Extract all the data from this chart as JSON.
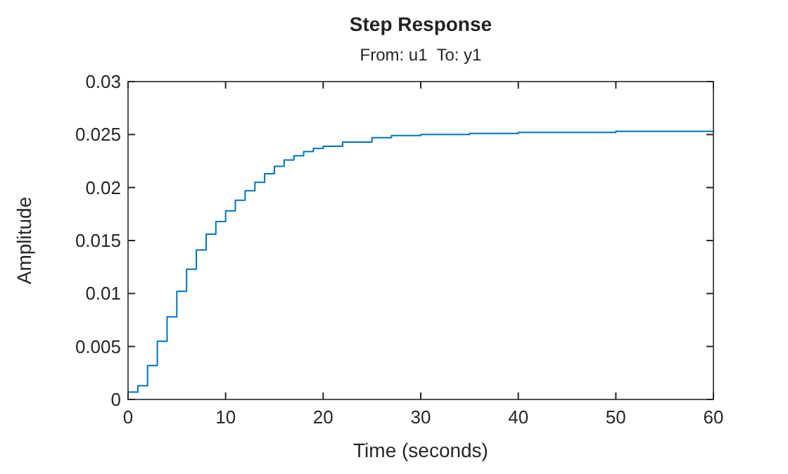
{
  "chart_data": {
    "type": "step",
    "title": "Step Response",
    "subtitle": "From: u1  To: y1",
    "xlabel": "Time (seconds)",
    "ylabel": "Amplitude",
    "x": [
      0,
      1,
      2,
      3,
      4,
      5,
      6,
      7,
      8,
      9,
      10,
      11,
      12,
      13,
      14,
      15,
      16,
      17,
      18,
      19,
      20,
      22,
      25,
      27,
      30,
      35,
      40,
      45,
      50,
      60
    ],
    "series": [
      {
        "color": "#0072bd",
        "values": [
          0.0007,
          0.0013,
          0.0032,
          0.0055,
          0.0078,
          0.0102,
          0.0123,
          0.0141,
          0.0156,
          0.0168,
          0.0178,
          0.0188,
          0.0197,
          0.0205,
          0.0213,
          0.022,
          0.0226,
          0.023,
          0.0234,
          0.0237,
          0.0239,
          0.0243,
          0.0247,
          0.0249,
          0.025,
          0.0251,
          0.0252,
          0.0252,
          0.0253,
          0.0253
        ]
      }
    ],
    "xlim": [
      0,
      60
    ],
    "xticks": [
      0,
      10,
      20,
      30,
      40,
      50,
      60
    ],
    "ylim": [
      0,
      0.03
    ],
    "yticks": [
      0,
      0.005,
      0.01,
      0.015,
      0.02,
      0.025,
      0.03
    ],
    "grid": false,
    "line_style": "solid"
  }
}
